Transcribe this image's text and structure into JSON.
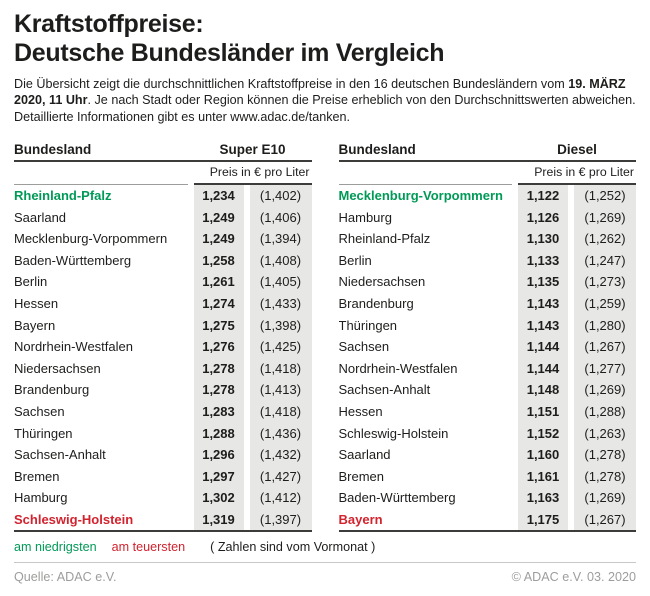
{
  "title": {
    "line1": "Kraftstoffpreise:",
    "line2": "Deutsche Bundesländer im Vergleich"
  },
  "intro": {
    "part1": "Die Übersicht zeigt die durchschnittlichen Kraftstoffpreise in den 16 deutschen Bundesländern vom ",
    "bold1": "19. MÄRZ 2020, 11 Uhr",
    "part2": ". Je nach Stadt oder Region können die Preise erheblich von den Durchschnittswerten abweichen. Detaillierte Informationen gibt es unter www.adac.de/tanken."
  },
  "colors": {
    "lowest": "#009a57",
    "highest": "#d2232e",
    "cell_background": "#e7e8e6",
    "ink": "#1d1d1b",
    "muted": "#9d9d9c"
  },
  "chart_data": [
    {
      "type": "table",
      "title": "Super E10",
      "state_header": "Bundesland",
      "unit": "Preis in € pro Liter",
      "columns": [
        "Bundesland",
        "Preis in € pro Liter",
        "Vormonat"
      ],
      "rows": [
        {
          "state": "Rheinland-Pfalz",
          "price": 1.234,
          "prev": 1.402,
          "highlight": "lowest"
        },
        {
          "state": "Saarland",
          "price": 1.249,
          "prev": 1.406
        },
        {
          "state": "Mecklenburg-Vorpommern",
          "price": 1.249,
          "prev": 1.394
        },
        {
          "state": "Baden-Württemberg",
          "price": 1.258,
          "prev": 1.408
        },
        {
          "state": "Berlin",
          "price": 1.261,
          "prev": 1.405
        },
        {
          "state": "Hessen",
          "price": 1.274,
          "prev": 1.433
        },
        {
          "state": "Bayern",
          "price": 1.275,
          "prev": 1.398
        },
        {
          "state": "Nordrhein-Westfalen",
          "price": 1.276,
          "prev": 1.425
        },
        {
          "state": "Niedersachsen",
          "price": 1.278,
          "prev": 1.418
        },
        {
          "state": "Brandenburg",
          "price": 1.278,
          "prev": 1.413
        },
        {
          "state": "Sachsen",
          "price": 1.283,
          "prev": 1.418
        },
        {
          "state": "Thüringen",
          "price": 1.288,
          "prev": 1.436
        },
        {
          "state": "Sachsen-Anhalt",
          "price": 1.296,
          "prev": 1.432
        },
        {
          "state": "Bremen",
          "price": 1.297,
          "prev": 1.427
        },
        {
          "state": "Hamburg",
          "price": 1.302,
          "prev": 1.412
        },
        {
          "state": "Schleswig-Holstein",
          "price": 1.319,
          "prev": 1.397,
          "highlight": "highest"
        }
      ]
    },
    {
      "type": "table",
      "title": "Diesel",
      "state_header": "Bundesland",
      "unit": "Preis in € pro Liter",
      "columns": [
        "Bundesland",
        "Preis in € pro Liter",
        "Vormonat"
      ],
      "rows": [
        {
          "state": "Mecklenburg-Vorpommern",
          "price": 1.122,
          "prev": 1.252,
          "highlight": "lowest"
        },
        {
          "state": "Hamburg",
          "price": 1.126,
          "prev": 1.269
        },
        {
          "state": "Rheinland-Pfalz",
          "price": 1.13,
          "prev": 1.262
        },
        {
          "state": "Berlin",
          "price": 1.133,
          "prev": 1.247
        },
        {
          "state": "Niedersachsen",
          "price": 1.135,
          "prev": 1.273
        },
        {
          "state": "Brandenburg",
          "price": 1.143,
          "prev": 1.259
        },
        {
          "state": "Thüringen",
          "price": 1.143,
          "prev": 1.28
        },
        {
          "state": "Sachsen",
          "price": 1.144,
          "prev": 1.267
        },
        {
          "state": "Nordrhein-Westfalen",
          "price": 1.144,
          "prev": 1.277
        },
        {
          "state": "Sachsen-Anhalt",
          "price": 1.148,
          "prev": 1.269
        },
        {
          "state": "Hessen",
          "price": 1.151,
          "prev": 1.288
        },
        {
          "state": "Schleswig-Holstein",
          "price": 1.152,
          "prev": 1.263
        },
        {
          "state": "Saarland",
          "price": 1.16,
          "prev": 1.278
        },
        {
          "state": "Bremen",
          "price": 1.161,
          "prev": 1.278
        },
        {
          "state": "Baden-Württemberg",
          "price": 1.163,
          "prev": 1.269
        },
        {
          "state": "Bayern",
          "price": 1.175,
          "prev": 1.267,
          "highlight": "highest"
        }
      ]
    }
  ],
  "legend": {
    "lowest": "am niedrigsten",
    "highest": "am teuersten",
    "note": "( Zahlen sind vom Vormonat )"
  },
  "footer": {
    "source": "Quelle: ADAC e.V.",
    "copyright": "© ADAC e.V. 03. 2020"
  }
}
